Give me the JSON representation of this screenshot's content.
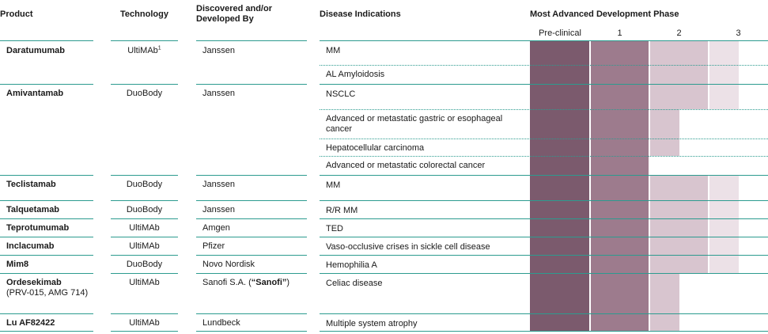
{
  "headers": {
    "product": "Product",
    "technology": "Technology",
    "discovered": "Discovered and/or Developed By",
    "indication": "Disease Indications",
    "phase_title": "Most Advanced Development Phase",
    "phases": [
      "Pre-clinical",
      "1",
      "2",
      "3"
    ]
  },
  "colors": {
    "rule": "#2c9b8f",
    "preclinical": "#7b5a6d",
    "phase1": "#9d7b8d",
    "phase2": "#d8c5cf",
    "phase3": "#ece1e7"
  },
  "products": [
    {
      "name": "Daratumumab",
      "technology": "UltiMAb",
      "technology_sup": "1",
      "developer": "Janssen"
    },
    {
      "name": "Amivantamab",
      "technology": "DuoBody",
      "developer": "Janssen"
    },
    {
      "name": "Teclistamab",
      "technology": "DuoBody",
      "developer": "Janssen"
    },
    {
      "name": "Talquetamab",
      "technology": "DuoBody",
      "developer": "Janssen"
    },
    {
      "name": "Teprotumumab",
      "technology": "UltiMAb",
      "developer": "Amgen"
    },
    {
      "name": "Inclacumab",
      "technology": "UltiMAb",
      "developer": "Pfizer"
    },
    {
      "name": "Mim8",
      "technology": "DuoBody",
      "developer": "Novo Nordisk"
    },
    {
      "name": "Ordesekimab",
      "name_note": "(PRV-015, AMG 714)",
      "technology": "UltiMAb",
      "developer_prefix": "Sanofi S.A. (",
      "developer_bold": "“Sanofi”",
      "developer_suffix": ")"
    },
    {
      "name": "Lu AF82422",
      "technology": "UltiMAb",
      "developer": "Lundbeck"
    }
  ],
  "indications": [
    {
      "label": "MM",
      "phase": 3.5
    },
    {
      "label": "AL Amyloidosis",
      "phase": 3.5
    },
    {
      "label": "NSCLC",
      "phase": 3.5
    },
    {
      "label": "Advanced or metastatic gastric or esophageal cancer",
      "phase": 2.5
    },
    {
      "label": "Hepatocellular carcinoma",
      "phase": 2.5
    },
    {
      "label": "Advanced or metastatic colorectal cancer",
      "phase": 2.0
    },
    {
      "label": "MM",
      "phase": 3.5
    },
    {
      "label": "R/R MM",
      "phase": 3.5
    },
    {
      "label": "TED",
      "phase": 3.5
    },
    {
      "label": "Vaso-occlusive crises in sickle cell disease",
      "phase": 3.5
    },
    {
      "label": "Hemophilia A",
      "phase": 3.5
    },
    {
      "label": "Celiac disease",
      "phase": 2.5
    },
    {
      "label": "Multiple system atrophy",
      "phase": 2.5
    }
  ]
}
